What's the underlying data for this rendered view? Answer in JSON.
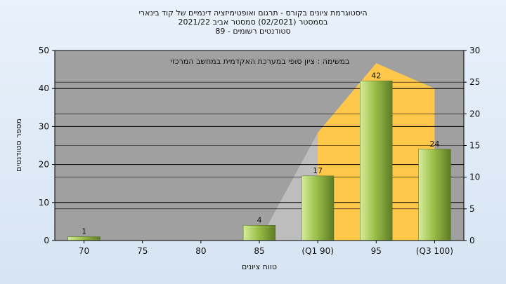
{
  "chart_data": {
    "type": "bar",
    "title_lines": [
      "היסטוגרמת ציונים בקורס - תרגום ואופטימיזציה דינמיים של קוד בינארי",
      "בסמסטר   (02/2021)  סמסטר אביב 2021/22",
      "סטודנטים רשומים - 89"
    ],
    "annotation": "במשימה : ציון סופי במערכת האקדמית במחשב המרכזי",
    "xlabel": "טווח ציונים",
    "ylabel": "מספר סטודנטים",
    "categories": [
      "70",
      "75",
      "80",
      "85",
      "(Q1 90)",
      "95",
      "(Q3 100)"
    ],
    "values": [
      1,
      0,
      0,
      4,
      17,
      42,
      24
    ],
    "data_labels": [
      "1",
      "",
      "",
      "4",
      "17",
      "42",
      "24"
    ],
    "ylim": [
      0,
      50
    ],
    "y_ticks": [
      0,
      10,
      20,
      30,
      40,
      50
    ],
    "y2lim": [
      0,
      30
    ],
    "y2_ticks": [
      0,
      5,
      10,
      15,
      20,
      25,
      30
    ],
    "area_series": [
      {
        "color": "#bdbdbd",
        "start_index": 3,
        "values": [
          0,
          17
        ]
      },
      {
        "color": "#ffc84a",
        "start_index": 4,
        "values": [
          17,
          28,
          24
        ]
      }
    ],
    "grid": true,
    "colors": {
      "plot_background": "#a0a0a0",
      "bar_light": "#d6ec9a",
      "bar_mid": "#9bc04a",
      "bar_dark": "#5e7c24",
      "grid": "#000000"
    }
  }
}
